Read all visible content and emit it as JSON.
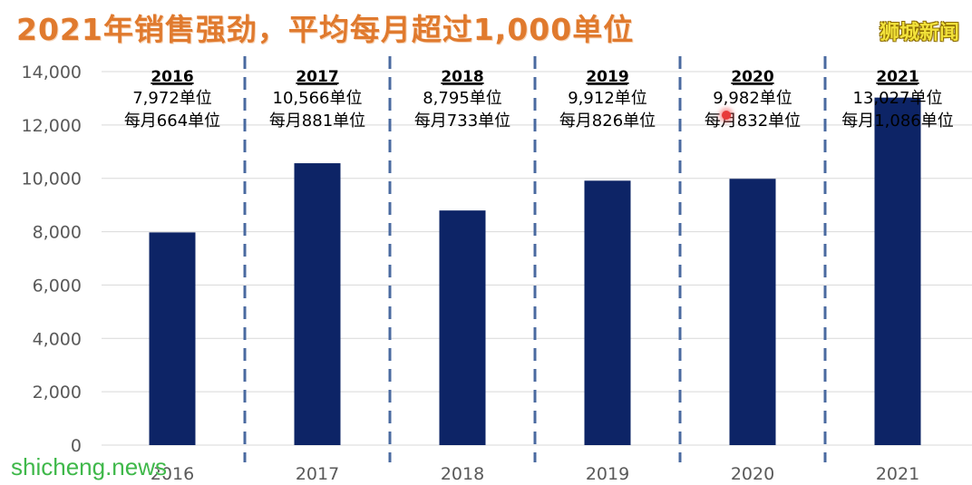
{
  "header": {
    "title": "2021年销售强劲，平均每月超过1,000单位",
    "brand": "狮城新闻"
  },
  "watermark": "shicheng.news",
  "colors": {
    "bar": "#0d2466",
    "title": "#e07a2e",
    "divider": "#4a6aa0",
    "grid": "#d9d9d9",
    "axis_text": "#595959"
  },
  "chart_data": {
    "type": "bar",
    "categories": [
      "2016",
      "2017",
      "2018",
      "2019",
      "2020",
      "2021"
    ],
    "values": [
      7972,
      10566,
      8795,
      9912,
      9982,
      13027
    ],
    "ylim": [
      0,
      14000
    ],
    "yticks": [
      "0",
      "2,000",
      "4,000",
      "6,000",
      "8,000",
      "10,000",
      "12,000",
      "14,000"
    ],
    "grid": true,
    "annotations": [
      {
        "year": "2016",
        "total": "7,972单位",
        "monthly": "每月664单位"
      },
      {
        "year": "2017",
        "total": "10,566单位",
        "monthly": "每月881单位"
      },
      {
        "year": "2018",
        "total": "8,795单位",
        "monthly": "每月733单位"
      },
      {
        "year": "2019",
        "total": "9,912单位",
        "monthly": "每月826单位"
      },
      {
        "year": "2020",
        "total": "9,982单位",
        "monthly": "每月832单位"
      },
      {
        "year": "2021",
        "total": "13,027单位",
        "monthly": "每月1,086单位"
      }
    ]
  }
}
